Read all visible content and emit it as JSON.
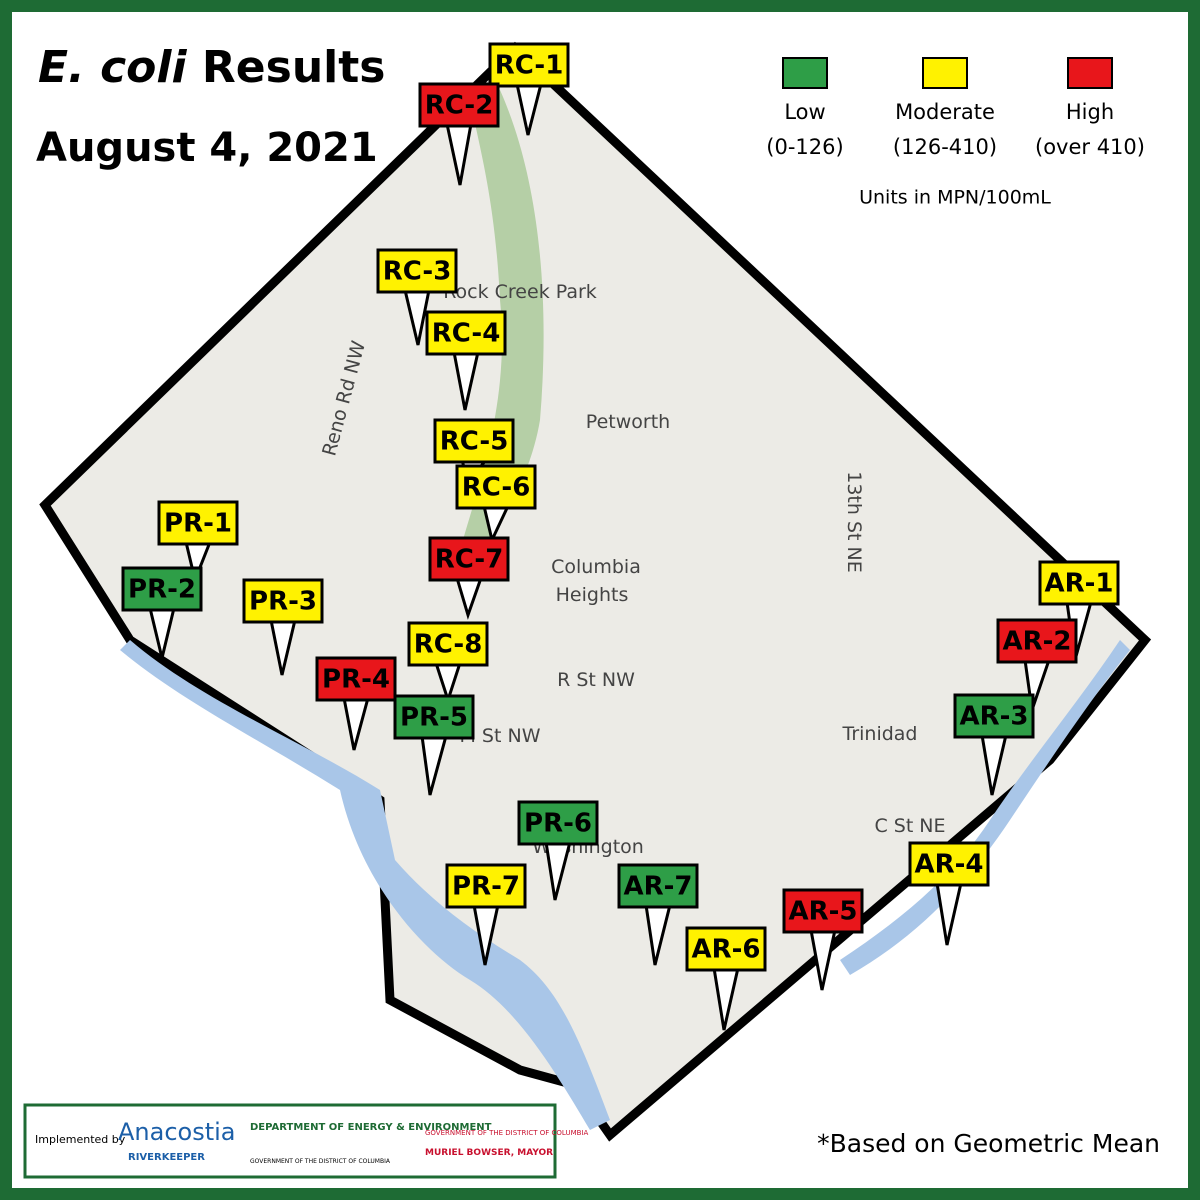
{
  "header": {
    "title_italic": "E. coli",
    "title_rest": "Results",
    "date": "August 4, 2021"
  },
  "legend": {
    "levels": [
      {
        "name": "Low",
        "range": "(0-126)",
        "color": "#2e9e47"
      },
      {
        "name": "Moderate",
        "range": "(126-410)",
        "color": "#fff200"
      },
      {
        "name": "High",
        "range": "(over 410)",
        "color": "#e8161b"
      }
    ],
    "units": "Units in MPN/100mL"
  },
  "sites": [
    {
      "label": "RC-1",
      "color": "#fff200"
    },
    {
      "label": "RC-2",
      "color": "#e8161b"
    },
    {
      "label": "RC-3",
      "color": "#fff200"
    },
    {
      "label": "RC-4",
      "color": "#fff200"
    },
    {
      "label": "RC-5",
      "color": "#fff200"
    },
    {
      "label": "RC-6",
      "color": "#fff200"
    },
    {
      "label": "RC-7",
      "color": "#e8161b"
    },
    {
      "label": "RC-8",
      "color": "#fff200"
    },
    {
      "label": "PR-1",
      "color": "#fff200"
    },
    {
      "label": "PR-2",
      "color": "#2e9e47"
    },
    {
      "label": "PR-3",
      "color": "#fff200"
    },
    {
      "label": "PR-4",
      "color": "#e8161b"
    },
    {
      "label": "PR-5",
      "color": "#2e9e47"
    },
    {
      "label": "PR-6",
      "color": "#2e9e47"
    },
    {
      "label": "PR-7",
      "color": "#fff200"
    },
    {
      "label": "AR-1",
      "color": "#fff200"
    },
    {
      "label": "AR-2",
      "color": "#e8161b"
    },
    {
      "label": "AR-3",
      "color": "#2e9e47"
    },
    {
      "label": "AR-4",
      "color": "#fff200"
    },
    {
      "label": "AR-5",
      "color": "#e8161b"
    },
    {
      "label": "AR-6",
      "color": "#fff200"
    },
    {
      "label": "AR-7",
      "color": "#2e9e47"
    }
  ],
  "map_labels": [
    "Rock Creek Park",
    "Petworth",
    "Columbia",
    "Heights",
    "R St NW",
    "M St NW",
    "Trinidad",
    "C St NE",
    "Washington",
    "Reno Rd NW",
    "13th St NE"
  ],
  "footer": {
    "implemented_by": "Implemented by",
    "org": "Anacostia",
    "org_sub": "RIVERKEEPER",
    "dept": "DEPARTMENT OF ENERGY & ENVIRONMENT",
    "gov": "GOVERNMENT OF THE DISTRICT OF COLUMBIA",
    "mayor": "MURIEL BOWSER, MAYOR",
    "note": "*Based on Geometric Mean"
  }
}
